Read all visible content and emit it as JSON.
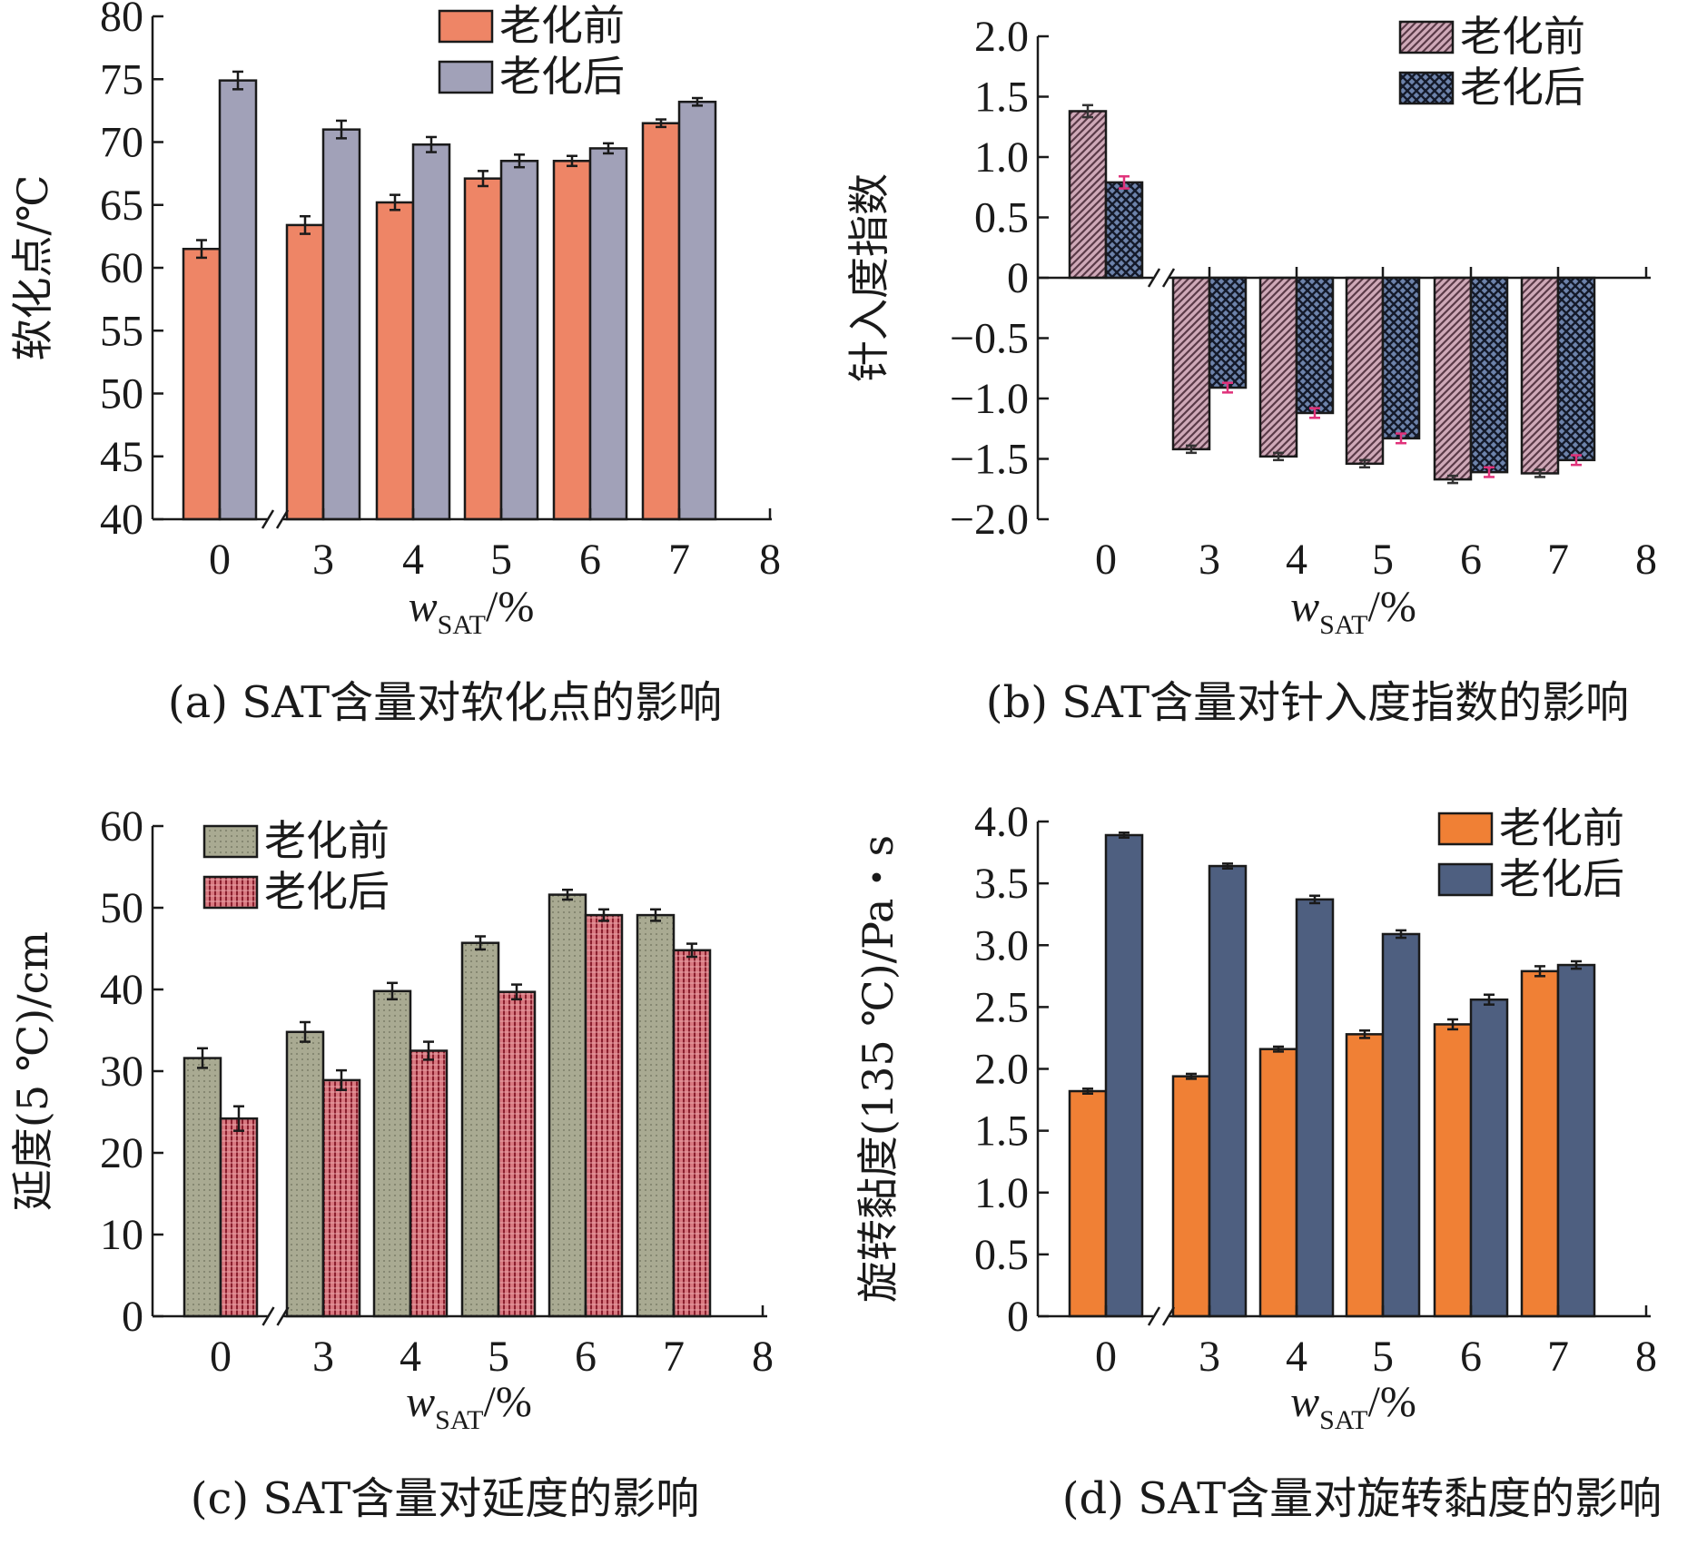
{
  "chart_data": [
    {
      "id": "a",
      "type": "bar",
      "caption": "(a) SAT含量对软化点的影响",
      "ylabel": "软化点/℃",
      "xlabel": {
        "var": "w",
        "sub": "SAT",
        "unit": "/%"
      },
      "ylim": [
        40,
        80
      ],
      "yticks": [
        "40",
        "45",
        "50",
        "55",
        "60",
        "65",
        "70",
        "75",
        "80"
      ],
      "xticks": [
        "0",
        "3",
        "4",
        "5",
        "6",
        "7",
        "8"
      ],
      "categories": [
        "0",
        "3",
        "4",
        "5",
        "6",
        "7"
      ],
      "axis_break": true,
      "legend_position": "top-center",
      "series": [
        {
          "name": "老化前",
          "values": [
            61.5,
            63.4,
            65.2,
            67.1,
            68.5,
            71.5
          ],
          "errors": [
            0.7,
            0.7,
            0.6,
            0.6,
            0.4,
            0.3
          ],
          "color": "#ee8566",
          "pattern": "solid"
        },
        {
          "name": "老化后",
          "values": [
            74.9,
            71.0,
            69.8,
            68.5,
            69.5,
            73.2
          ],
          "errors": [
            0.7,
            0.7,
            0.6,
            0.5,
            0.4,
            0.3
          ],
          "color": "#a1a1b8",
          "pattern": "solid"
        }
      ]
    },
    {
      "id": "b",
      "type": "bar",
      "caption": "(b) SAT含量对针入度指数的影响",
      "ylabel": "针入度指数",
      "xlabel": {
        "var": "w",
        "sub": "SAT",
        "unit": "/%"
      },
      "ylim": [
        -2.0,
        2.0
      ],
      "yticks": [
        "−2.0",
        "−1.5",
        "−1.0",
        "−0.5",
        "0",
        "0.5",
        "1.0",
        "1.5",
        "2.0"
      ],
      "xticks": [
        "0",
        "3",
        "4",
        "5",
        "6",
        "7",
        "8"
      ],
      "categories": [
        "0",
        "3",
        "4",
        "5",
        "6",
        "7"
      ],
      "axis_break": true,
      "legend_position": "top-right",
      "series": [
        {
          "name": "老化前",
          "values": [
            1.38,
            -1.42,
            -1.48,
            -1.54,
            -1.67,
            -1.62
          ],
          "errors": [
            0.05,
            0.03,
            0.03,
            0.03,
            0.03,
            0.03
          ],
          "color": "#9a6f80",
          "pattern": "diagonal",
          "error_color": "#333333"
        },
        {
          "name": "老化后",
          "values": [
            0.79,
            -0.91,
            -1.12,
            -1.33,
            -1.61,
            -1.51
          ],
          "errors": [
            0.05,
            0.04,
            0.04,
            0.04,
            0.04,
            0.04
          ],
          "color": "#5a6b8a",
          "pattern": "crosshatch",
          "error_color": "#e0327a"
        }
      ]
    },
    {
      "id": "c",
      "type": "bar",
      "caption": "(c) SAT含量对延度的影响",
      "ylabel": "延度(5 ℃)/cm",
      "xlabel": {
        "var": "w",
        "sub": "SAT",
        "unit": "/%"
      },
      "ylim": [
        0,
        60
      ],
      "yticks": [
        "0",
        "10",
        "20",
        "30",
        "40",
        "50",
        "60"
      ],
      "xticks": [
        "0",
        "3",
        "4",
        "5",
        "6",
        "7",
        "8"
      ],
      "categories": [
        "0",
        "3",
        "4",
        "5",
        "6",
        "7"
      ],
      "axis_break": true,
      "legend_position": "top-left",
      "series": [
        {
          "name": "老化前",
          "values": [
            31.6,
            34.8,
            39.8,
            45.7,
            51.6,
            49.1
          ],
          "errors": [
            1.2,
            1.2,
            1.0,
            0.8,
            0.6,
            0.7
          ],
          "color": "#a8a890",
          "pattern": "dots"
        },
        {
          "name": "老化后",
          "values": [
            24.2,
            28.9,
            32.5,
            39.7,
            49.1,
            44.8
          ],
          "errors": [
            1.5,
            1.2,
            1.1,
            0.9,
            0.7,
            0.8
          ],
          "color": "#c0505a",
          "pattern": "stripes"
        }
      ]
    },
    {
      "id": "d",
      "type": "bar",
      "caption": "(d) SAT含量对旋转黏度的影响",
      "ylabel": "旋转黏度(135 ℃)/Pa・s",
      "xlabel": {
        "var": "w",
        "sub": "SAT",
        "unit": "/%"
      },
      "ylim": [
        0,
        4.0
      ],
      "yticks": [
        "0",
        "0.5",
        "1.0",
        "1.5",
        "2.0",
        "2.5",
        "3.0",
        "3.5",
        "4.0"
      ],
      "xticks": [
        "0",
        "3",
        "4",
        "5",
        "6",
        "7",
        "8"
      ],
      "categories": [
        "0",
        "3",
        "4",
        "5",
        "6",
        "7"
      ],
      "axis_break": true,
      "legend_position": "top-right",
      "series": [
        {
          "name": "老化前",
          "values": [
            1.82,
            1.94,
            2.16,
            2.28,
            2.36,
            2.79
          ],
          "errors": [
            0.02,
            0.02,
            0.02,
            0.03,
            0.04,
            0.04
          ],
          "color": "#f08035",
          "pattern": "solid"
        },
        {
          "name": "老化后",
          "values": [
            3.89,
            3.64,
            3.37,
            3.09,
            2.56,
            2.84
          ],
          "errors": [
            0.02,
            0.02,
            0.03,
            0.03,
            0.04,
            0.03
          ],
          "color": "#4e5f80",
          "pattern": "solid"
        }
      ]
    }
  ]
}
